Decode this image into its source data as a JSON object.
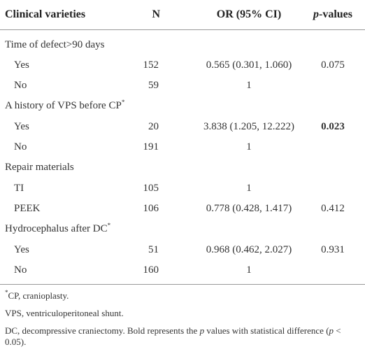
{
  "table": {
    "header": [
      [
        {
          "t": "Clinical varieties"
        }
      ],
      [
        {
          "t": "N"
        }
      ],
      [
        {
          "t": "OR (95% CI)"
        }
      ],
      [
        {
          "t": "p",
          "style": "em"
        },
        {
          "t": "-values"
        }
      ]
    ],
    "groups": [
      {
        "label": "Time of defect>90 days",
        "rows": [
          {
            "cells": [
              "Yes",
              "152",
              "0.565 (0.301, 1.060)",
              "0.075"
            ]
          },
          {
            "cells": [
              "No",
              "59",
              "1"
            ]
          }
        ]
      },
      {
        "label": "A history of VPS before CP",
        "mark": "*",
        "rows": [
          {
            "cells": [
              "Yes",
              "20",
              "3.838 (1.205, 12.222)",
              "0.023"
            ],
            "bold_p": true
          },
          {
            "cells": [
              "No",
              "191",
              "1"
            ]
          }
        ]
      },
      {
        "label": "Repair materials",
        "rows": [
          {
            "cells": [
              "TI",
              "105",
              "1"
            ]
          },
          {
            "cells": [
              "PEEK",
              "106",
              "0.778 (0.428, 1.417)",
              "0.412"
            ]
          }
        ]
      },
      {
        "label": "Hydrocephalus after DC",
        "mark": "*",
        "rows": [
          {
            "cells": [
              "Yes",
              "51",
              "0.968 (0.462, 2.027)",
              "0.931"
            ]
          },
          {
            "cells": [
              "No",
              "160",
              "1"
            ]
          }
        ]
      }
    ]
  },
  "footnotes": [
    [
      {
        "t": "*",
        "style": "sup"
      },
      {
        "t": "CP, cranioplasty."
      }
    ],
    [
      {
        "t": "VPS, ventriculoperitoneal shunt."
      }
    ],
    [
      {
        "t": "DC, decompressive craniectomy. Bold represents the "
      },
      {
        "t": "p",
        "style": "em"
      },
      {
        "t": " values with statistical difference ("
      },
      {
        "t": "p",
        "style": "em"
      },
      {
        "t": " < 0.05)."
      }
    ]
  ]
}
